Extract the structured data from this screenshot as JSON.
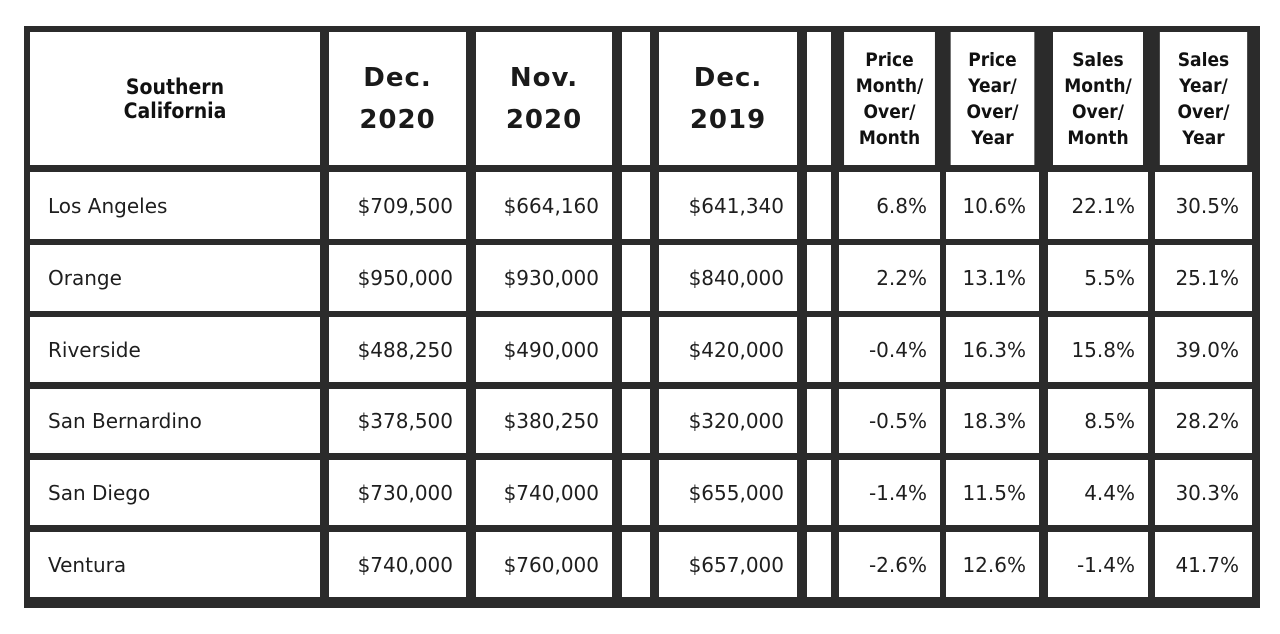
{
  "chart_data": {
    "type": "table",
    "columns": [
      {
        "key": "region",
        "label_lines": [
          "Southern",
          "California"
        ]
      },
      {
        "key": "dec2020",
        "label_lines": [
          "Dec.",
          "2020"
        ]
      },
      {
        "key": "nov2020",
        "label_lines": [
          "Nov.",
          "2020"
        ]
      },
      {
        "key": "dec2019",
        "label_lines": [
          "Dec.",
          "2019"
        ]
      },
      {
        "key": "price_mom",
        "label_lines": [
          "Price",
          "Month/",
          "Over/",
          "Month"
        ]
      },
      {
        "key": "price_yoy",
        "label_lines": [
          "Price",
          "Year/",
          "Over/",
          "Year"
        ]
      },
      {
        "key": "sales_mom",
        "label_lines": [
          "Sales",
          "Month/",
          "Over/",
          "Month"
        ]
      },
      {
        "key": "sales_yoy",
        "label_lines": [
          "Sales",
          "Year/",
          "Over/",
          "Year"
        ]
      }
    ],
    "rows": [
      [
        "Los Angeles",
        "$709,500",
        "$664,160",
        "$641,340",
        "6.8%",
        "10.6%",
        "22.1%",
        "30.5%"
      ],
      [
        "Orange",
        "$950,000",
        "$930,000",
        "$840,000",
        "2.2%",
        "13.1%",
        "5.5%",
        "25.1%"
      ],
      [
        "Riverside",
        "$488,250",
        "$490,000",
        "$420,000",
        "-0.4%",
        "16.3%",
        "15.8%",
        "39.0%"
      ],
      [
        "San Bernardino",
        "$378,500",
        "$380,250",
        "$320,000",
        "-0.5%",
        "18.3%",
        "8.5%",
        "28.2%"
      ],
      [
        "San Diego",
        "$730,000",
        "$740,000",
        "$655,000",
        "-1.4%",
        "11.5%",
        "4.4%",
        "30.3%"
      ],
      [
        "Ventura",
        "$740,000",
        "$760,000",
        "$657,000",
        "-2.6%",
        "12.6%",
        "-1.4%",
        "41.7%"
      ]
    ]
  }
}
